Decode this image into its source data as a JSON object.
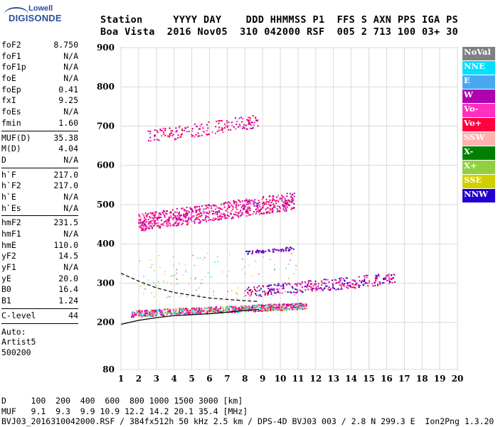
{
  "logo": {
    "line1": "Lowell",
    "line2": "DIGISONDE"
  },
  "header": {
    "line1": "Station     YYYY DAY    DDD HHMMSS P1  FFS S AXN PPS IGA PS",
    "line2": "Boa Vista  2016 Nov05  310 042000 RSF  005 2 713 100 03+ 30"
  },
  "params": [
    [
      [
        "foF2",
        "8.750"
      ],
      [
        "foF1",
        "N/A"
      ],
      [
        "foF1p",
        "N/A"
      ],
      [
        "foE",
        "N/A"
      ],
      [
        "foEp",
        "0.41"
      ],
      [
        "fxI",
        "9.25"
      ],
      [
        "foEs",
        "N/A"
      ],
      [
        "fmin",
        "1.60"
      ]
    ],
    [
      [
        "MUF(D)",
        "35.38"
      ],
      [
        "M(D)",
        "4.04"
      ],
      [
        "D",
        "N/A"
      ]
    ],
    [
      [
        "h`F",
        "217.0"
      ],
      [
        "h`F2",
        "217.0"
      ],
      [
        "h`E",
        "N/A"
      ],
      [
        "h`Es",
        "N/A"
      ]
    ],
    [
      [
        "hmF2",
        "231.5"
      ],
      [
        "hmF1",
        "N/A"
      ],
      [
        "hmE",
        "110.0"
      ],
      [
        "yF2",
        "14.5"
      ],
      [
        "yF1",
        "N/A"
      ],
      [
        "yE",
        "20.0"
      ],
      [
        "B0",
        "16.4"
      ],
      [
        "B1",
        "1.24"
      ]
    ],
    [
      [
        "C-level",
        "44"
      ]
    ]
  ],
  "auto": {
    "line1": "Auto:",
    "line2": "Artist5",
    "line3": "500200"
  },
  "legend": [
    {
      "label": "NoVal",
      "color": "#808080"
    },
    {
      "label": "NNE",
      "color": "#00e0ff"
    },
    {
      "label": "E",
      "color": "#4aa8f0"
    },
    {
      "label": "W",
      "color": "#b000b0"
    },
    {
      "label": "Vo-",
      "color": "#ff30c0"
    },
    {
      "label": "Vo+",
      "color": "#ff0040"
    },
    {
      "label": "SSW",
      "color": "#ffb0b0"
    },
    {
      "label": "X-",
      "color": "#008000"
    },
    {
      "label": "X+",
      "color": "#90d040"
    },
    {
      "label": "SSE",
      "color": "#d0d000"
    },
    {
      "label": "NNW",
      "color": "#2000d0"
    }
  ],
  "footer": {
    "line1": "D     100  200  400  600  800 1000 1500 3000 [km]",
    "line2": "MUF   9.1  9.3  9.9 10.9 12.2 14.2 20.1 35.4 [MHz]",
    "line3": "BVJ03_2016310042000.RSF / 384fx512h 50 kHz 2.5 km / DPS-4D BVJ03 003 / 2.8 N 299.3 E  Ion2Png 1.3.20"
  },
  "chart_data": {
    "type": "scatter",
    "xlim": [
      1,
      20
    ],
    "ylim": [
      80,
      900
    ],
    "x_ticks": [
      1,
      2,
      3,
      4,
      5,
      6,
      7,
      8,
      9,
      10,
      11,
      12,
      13,
      14,
      15,
      16,
      17,
      18,
      19,
      20
    ],
    "y_ticks": [
      80,
      200,
      300,
      400,
      500,
      600,
      700,
      800,
      900
    ],
    "grid": true,
    "clusters": [
      {
        "label": "F-trace",
        "x0": 1.6,
        "x1": 11.5,
        "y0": 218,
        "y1": 255,
        "colors": [
          "Vo+",
          "Vo-",
          "W",
          "X+",
          "SSW",
          "NNE"
        ]
      },
      {
        "label": "F-spread",
        "x0": 8.0,
        "x1": 16.5,
        "y0": 270,
        "y1": 335,
        "colors": [
          "W",
          "Vo+",
          "Vo-",
          "NNW"
        ]
      },
      {
        "label": "2F",
        "x0": 2.0,
        "x1": 10.8,
        "y0": 445,
        "y1": 545,
        "colors": [
          "Vo+",
          "Vo-",
          "W"
        ]
      },
      {
        "label": "3F",
        "x0": 2.5,
        "x1": 8.8,
        "y0": 665,
        "y1": 740,
        "colors": [
          "W",
          "Vo-",
          "Vo+"
        ]
      },
      {
        "label": "upper",
        "x0": 8.0,
        "x1": 10.8,
        "y0": 375,
        "y1": 395,
        "colors": [
          "W",
          "NNW"
        ]
      }
    ],
    "profile_lines": [
      {
        "label": "solid-profile",
        "points": [
          [
            1.0,
            195
          ],
          [
            2.0,
            205
          ],
          [
            3.0,
            212
          ],
          [
            4.0,
            217
          ],
          [
            6.0,
            222
          ],
          [
            8.0,
            230
          ],
          [
            8.8,
            233
          ]
        ]
      },
      {
        "label": "dashed-profile",
        "points": [
          [
            1.0,
            325
          ],
          [
            2.0,
            305
          ],
          [
            3.0,
            288
          ],
          [
            4.0,
            276
          ],
          [
            6.0,
            262
          ],
          [
            8.0,
            255
          ],
          [
            8.8,
            253
          ]
        ]
      }
    ]
  }
}
